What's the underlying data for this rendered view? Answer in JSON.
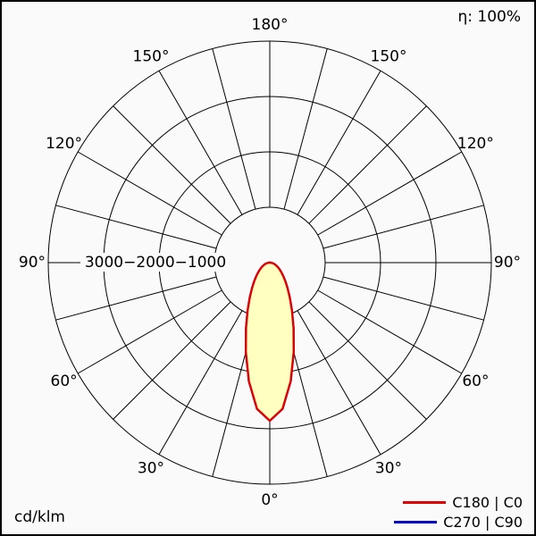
{
  "meta": {
    "eta": "η: 100%",
    "unit": "cd/klm"
  },
  "legend": [
    {
      "label": "C180 | C0",
      "color": "#e10000"
    },
    {
      "label": "C270 | C90",
      "color": "#0000cc"
    }
  ],
  "chart_data": {
    "type": "polar-line",
    "units": "cd/klm",
    "eta": "100%",
    "rings": [
      1000,
      2000,
      3000
    ],
    "rmax": 4000,
    "ring_label_text": "3000−2000−1000",
    "spoke_step_deg": 15,
    "angle_labels": [
      {
        "deg": 0,
        "text": "0°"
      },
      {
        "deg": 30,
        "text": "30°"
      },
      {
        "deg": 60,
        "text": "60°"
      },
      {
        "deg": 90,
        "text": "90°"
      },
      {
        "deg": 120,
        "text": "120°"
      },
      {
        "deg": 150,
        "text": "150°"
      },
      {
        "deg": 180,
        "text": "180°"
      }
    ],
    "series": [
      {
        "name": "C180 | C0",
        "color": "#e10000",
        "fill": "#ffffc0",
        "gamma_deg": [
          0,
          5,
          10,
          15,
          20,
          25,
          30,
          35,
          40,
          45,
          50,
          55,
          60,
          65,
          70,
          75,
          80,
          85,
          90
        ],
        "values": [
          2855,
          2649,
          2173,
          1669,
          1254,
          944,
          719,
          556,
          435,
          344,
          273,
          217,
          172,
          134,
          102,
          73,
          47,
          23,
          0
        ]
      },
      {
        "name": "C270 | C90",
        "color": "#0000cc",
        "fill": "none",
        "gamma_deg": [
          0,
          5,
          10,
          15,
          20,
          25,
          30,
          35,
          40,
          45,
          50,
          55,
          60,
          65,
          70,
          75,
          80,
          85,
          90
        ],
        "values": [
          2855,
          2649,
          2173,
          1669,
          1254,
          944,
          719,
          556,
          435,
          344,
          273,
          217,
          172,
          134,
          102,
          73,
          47,
          23,
          0
        ]
      }
    ]
  }
}
